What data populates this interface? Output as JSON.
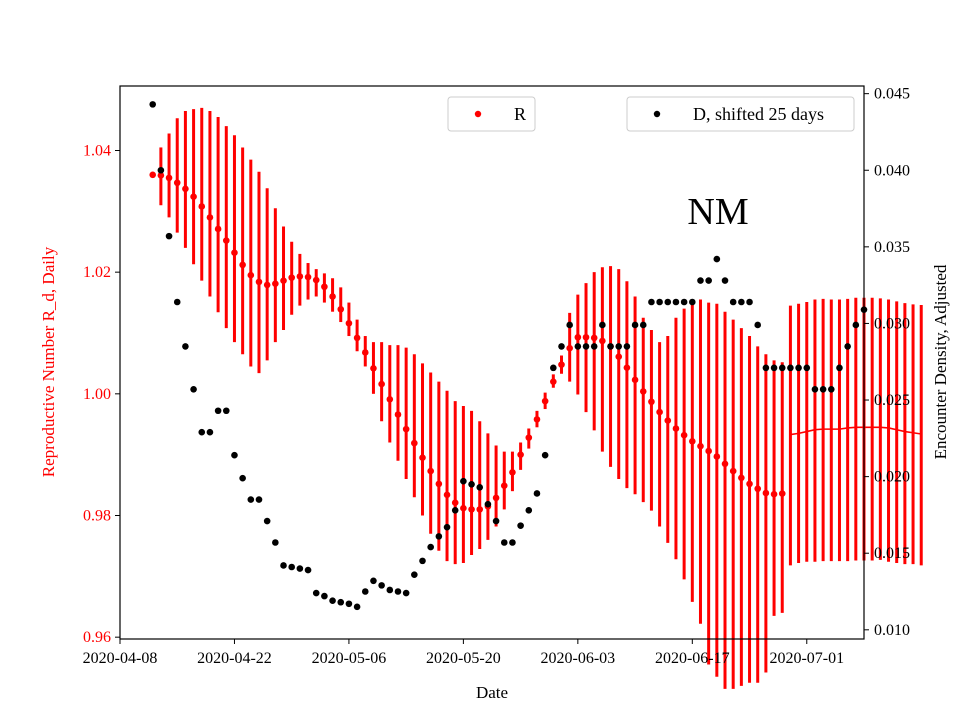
{
  "chart_data": {
    "type": "scatter",
    "annotation": "NM",
    "xlabel": "Date",
    "ylabel_left": "Reproductive Number R_d, Daily",
    "ylabel_right": "Encounter Density, Adjusted",
    "colors": {
      "r_series": "#ff0000",
      "d_series": "#000000",
      "left_axis": "#ff0000",
      "right_axis": "#000000"
    },
    "x_range": [
      "2020-04-08",
      "2020-07-08"
    ],
    "x_ticks": [
      "2020-04-08",
      "2020-04-22",
      "2020-05-06",
      "2020-05-20",
      "2020-06-03",
      "2020-06-17",
      "2020-07-01"
    ],
    "y_left_range": [
      0.9597,
      1.0506
    ],
    "y_left_ticks": [
      "0.96",
      "0.98",
      "1.00",
      "1.02",
      "1.04"
    ],
    "y_right_range": [
      0.0094,
      0.0455
    ],
    "y_right_ticks": [
      "0.010",
      "0.015",
      "0.020",
      "0.025",
      "0.030",
      "0.035",
      "0.040",
      "0.045"
    ],
    "legend_left": {
      "label": "R",
      "placement": "top-center"
    },
    "legend_right": {
      "label": "D, shifted 25 days",
      "placement": "top-right"
    },
    "start_date": "2020-04-12",
    "r_series": {
      "name": "R",
      "axis": "left",
      "values": [
        1.036,
        1.0359,
        1.0355,
        1.0347,
        1.0337,
        1.0324,
        1.0308,
        1.029,
        1.0271,
        1.0252,
        1.0232,
        1.0212,
        1.0195,
        1.0184,
        1.0179,
        1.0181,
        1.0186,
        1.0191,
        1.0193,
        1.0192,
        1.0187,
        1.0176,
        1.016,
        1.0139,
        1.0116,
        1.0092,
        1.0068,
        1.0042,
        1.0016,
        0.9991,
        0.9966,
        0.9942,
        0.9919,
        0.9895,
        0.9873,
        0.9852,
        0.9834,
        0.9821,
        0.9812,
        0.981,
        0.981,
        0.9815,
        0.9829,
        0.9849,
        0.9871,
        0.99,
        0.9928,
        0.9958,
        0.9988,
        1.002,
        1.0048,
        1.0075,
        1.0093,
        1.0093,
        1.0092,
        1.0087,
        1.0078,
        1.0061,
        1.0043,
        1.0023,
        1.0004,
        0.9987,
        0.997,
        0.9956,
        0.9943,
        0.9932,
        0.9922,
        0.9914,
        0.9906,
        0.9897,
        0.9885,
        0.9873,
        0.9862,
        0.9852,
        0.9844,
        0.9837,
        0.9835,
        0.9836,
        0.9933,
        0.9935,
        0.9938,
        0.9941,
        0.9942,
        0.9942,
        0.9942,
        0.9944,
        0.9945,
        0.9945,
        0.9945,
        0.9945,
        0.9944,
        0.9941,
        0.9938,
        0.9936,
        0.9934
      ],
      "lower": [
        1.036,
        1.031,
        1.029,
        1.0265,
        1.024,
        1.0213,
        1.0186,
        1.016,
        1.0134,
        1.0108,
        1.0085,
        1.0065,
        1.0045,
        1.0034,
        1.0055,
        1.0085,
        1.0105,
        1.013,
        1.0145,
        1.0155,
        1.016,
        1.015,
        1.0135,
        1.0118,
        1.0095,
        1.007,
        1.0045,
        1.0,
        0.9955,
        0.992,
        0.989,
        0.986,
        0.983,
        0.98,
        0.977,
        0.9742,
        0.9725,
        0.972,
        0.9722,
        0.9735,
        0.9745,
        0.976,
        0.9782,
        0.981,
        0.984,
        0.9875,
        0.991,
        0.9945,
        0.9975,
        1.001,
        1.0033,
        1.002,
        0.9999,
        0.997,
        0.994,
        0.9905,
        0.988,
        0.986,
        0.9845,
        0.9835,
        0.9822,
        0.9808,
        0.9782,
        0.9755,
        0.9728,
        0.9695,
        0.9658,
        0.9622,
        0.9555,
        0.9535,
        0.9515,
        0.9515,
        0.952,
        0.9525,
        0.9525,
        0.9542,
        0.9635,
        0.964,
        0.9718,
        0.9722,
        0.9724,
        0.9724,
        0.9725,
        0.9725,
        0.9725,
        0.9725,
        0.9726,
        0.9726,
        0.9726,
        0.9727,
        0.9724,
        0.9722,
        0.972,
        0.972,
        0.9718
      ],
      "upper": [
        1.036,
        1.0405,
        1.0428,
        1.0453,
        1.0465,
        1.0468,
        1.047,
        1.0465,
        1.0455,
        1.044,
        1.0425,
        1.0405,
        1.0385,
        1.0365,
        1.0338,
        1.0305,
        1.0275,
        1.025,
        1.023,
        1.0215,
        1.0205,
        1.0198,
        1.019,
        1.0175,
        1.015,
        1.0122,
        1.0095,
        1.0085,
        1.0085,
        1.008,
        1.008,
        1.0076,
        1.0065,
        1.005,
        1.0035,
        1.002,
        1.0005,
        0.9988,
        0.998,
        0.9972,
        0.9955,
        0.9935,
        0.9915,
        0.9905,
        0.9905,
        0.992,
        0.9943,
        0.9972,
        1.0002,
        1.0032,
        1.0063,
        1.0133,
        1.0163,
        1.0182,
        1.02,
        1.0208,
        1.021,
        1.0205,
        1.0185,
        1.016,
        1.0125,
        1.0105,
        1.0085,
        1.0095,
        1.0125,
        1.014,
        1.0152,
        1.0155,
        1.015,
        1.0148,
        1.0135,
        1.0122,
        1.0108,
        1.0095,
        1.0078,
        1.0065,
        1.0055,
        1.0052,
        1.0145,
        1.0148,
        1.0151,
        1.0155,
        1.0156,
        1.0155,
        1.0155,
        1.0156,
        1.0158,
        1.0158,
        1.0158,
        1.0157,
        1.0155,
        1.0152,
        1.0149,
        1.0147,
        1.0146
      ],
      "point_range": [
        0,
        77
      ]
    },
    "d_series": {
      "name": "D, shifted 25 days",
      "axis": "right",
      "values": [
        0.0443,
        0.04,
        0.0357,
        0.0314,
        0.0285,
        0.0257,
        0.0229,
        0.0229,
        0.0243,
        0.0243,
        0.0214,
        0.0199,
        0.0185,
        0.0185,
        0.0171,
        0.0157,
        0.0142,
        0.0141,
        0.014,
        0.0139,
        0.0124,
        0.0122,
        0.0119,
        0.0118,
        0.0117,
        0.0115,
        0.0125,
        0.0132,
        0.0129,
        0.0126,
        0.0125,
        0.0124,
        0.0136,
        0.0145,
        0.0154,
        0.0161,
        0.0167,
        0.0178,
        0.0197,
        0.0195,
        0.0193,
        0.0182,
        0.0171,
        0.0157,
        0.0157,
        0.0168,
        0.0178,
        0.0189,
        0.0214,
        0.0271,
        0.0285,
        0.0299,
        0.0285,
        0.0285,
        0.0285,
        0.0299,
        0.0285,
        0.0285,
        0.0285,
        0.0299,
        0.0299,
        0.0314,
        0.0314,
        0.0314,
        0.0314,
        0.0314,
        0.0314,
        0.0328,
        0.0328,
        0.0342,
        0.0328,
        0.0314,
        0.0314,
        0.0314,
        0.0299,
        0.0271,
        0.0271,
        0.0271,
        0.0271,
        0.0271,
        0.0271,
        0.0257,
        0.0257,
        0.0257,
        0.0271,
        0.0285,
        0.0299,
        0.0309
      ]
    }
  }
}
